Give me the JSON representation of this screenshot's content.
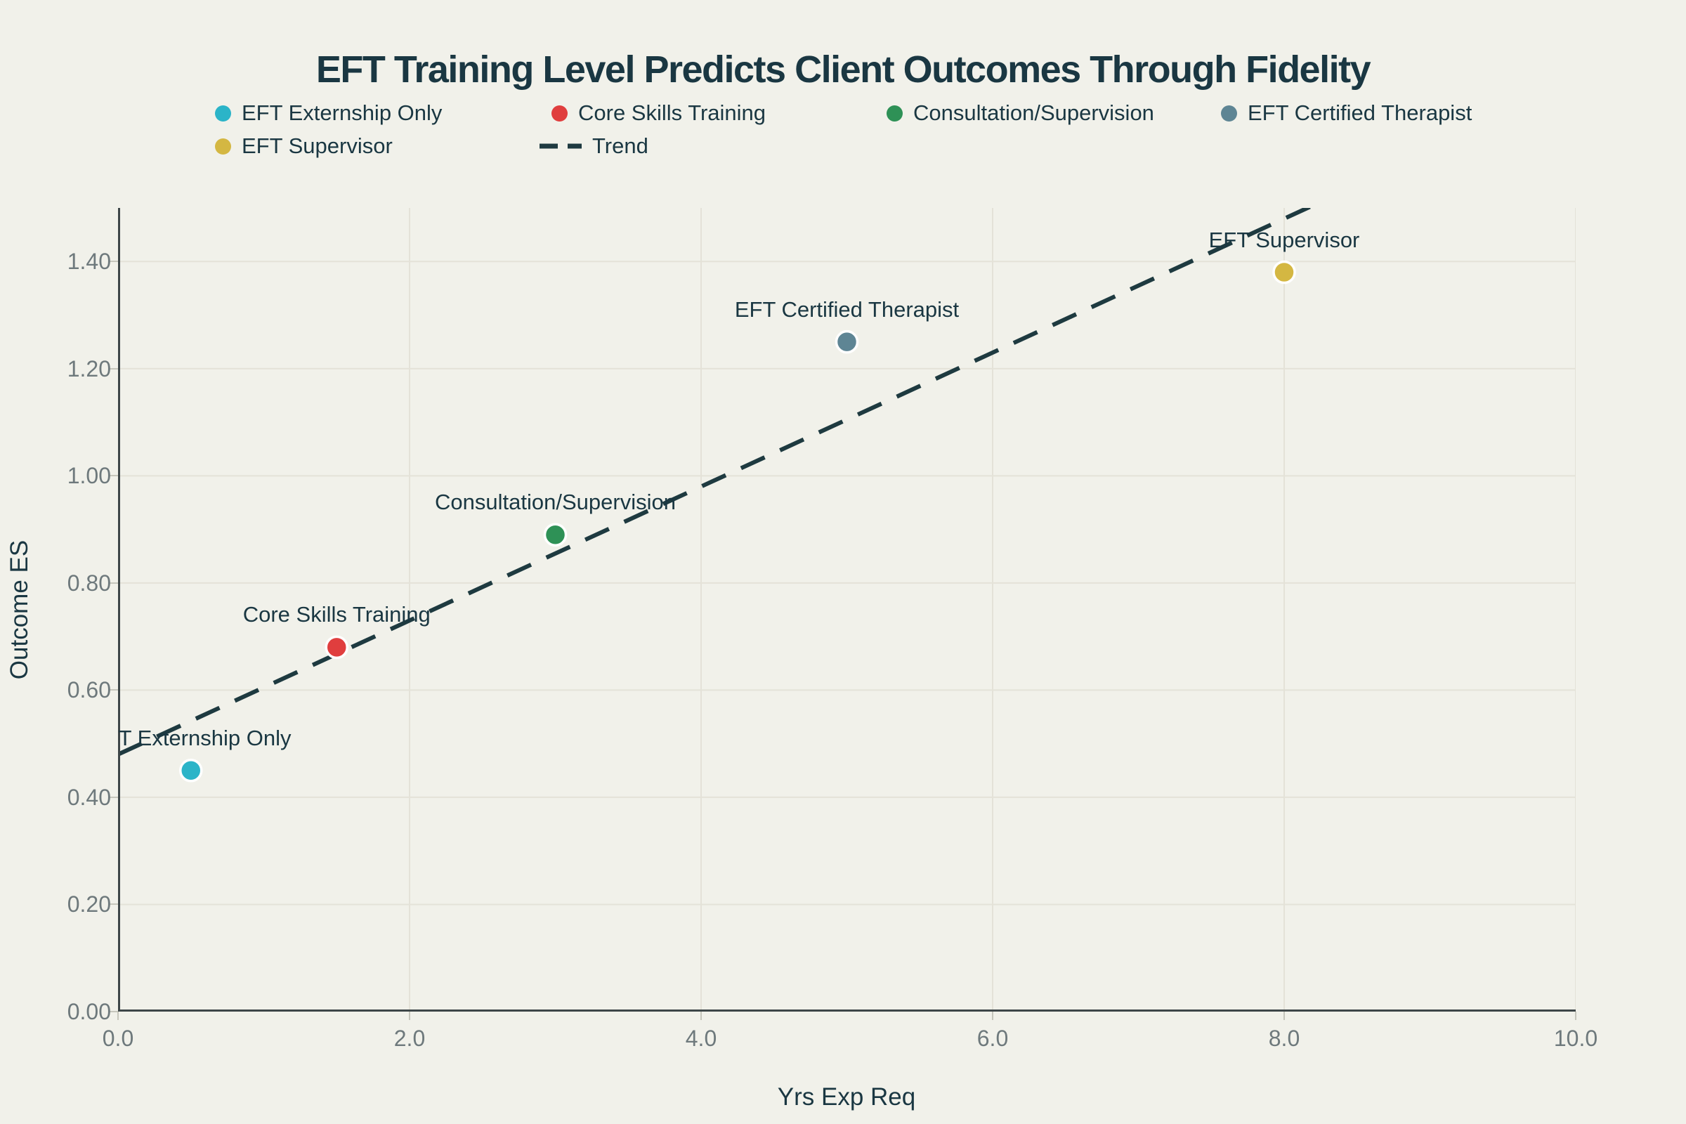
{
  "title": "EFT Training Level Predicts Client Outcomes Through Fidelity",
  "colors": {
    "background": "#f1f1ea",
    "text": "#1a3742",
    "tick_label": "#6e797c",
    "grid": "#e4e2d8",
    "axis": "#3d4648",
    "tick_mark": "#c6c6bc",
    "trend": "#1e3a40"
  },
  "chart_data": {
    "type": "scatter",
    "title": "EFT Training Level Predicts Client Outcomes Through Fidelity",
    "xlabel": "Yrs Exp Req",
    "ylabel": "Outcome ES",
    "xlim": [
      0,
      10
    ],
    "ylim": [
      0,
      1.5
    ],
    "x_ticks": [
      0,
      2,
      4,
      6,
      8,
      10
    ],
    "x_tick_labels": [
      "0.0",
      "2.0",
      "4.0",
      "6.0",
      "8.0",
      "10.0"
    ],
    "y_ticks": [
      0,
      0.2,
      0.4,
      0.6,
      0.8,
      1.0,
      1.2,
      1.4
    ],
    "y_tick_labels": [
      "0.00",
      "0.20",
      "0.40",
      "0.60",
      "0.80",
      "1.00",
      "1.20",
      "1.40"
    ],
    "grid": true,
    "legend_position": "top",
    "series": [
      {
        "name": "EFT Externship Only",
        "color": "#2bb4c8",
        "x": 0.5,
        "y": 0.45
      },
      {
        "name": "Core Skills Training",
        "color": "#e03e3e",
        "x": 1.5,
        "y": 0.68
      },
      {
        "name": "Consultation/Supervision",
        "color": "#2e9156",
        "x": 3.0,
        "y": 0.89
      },
      {
        "name": "EFT Certified Therapist",
        "color": "#5e8594",
        "x": 5.0,
        "y": 1.25
      },
      {
        "name": "EFT Supervisor",
        "color": "#d4b742",
        "x": 8.0,
        "y": 1.38
      }
    ],
    "trend": {
      "name": "Trend",
      "style": "dashed",
      "color": "#1e3a40",
      "intercept": 0.48,
      "slope": 0.125
    }
  }
}
